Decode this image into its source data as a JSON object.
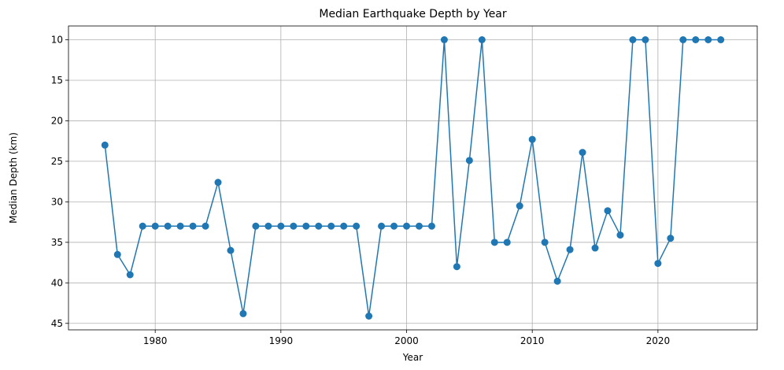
{
  "chart_data": {
    "type": "line",
    "title": "Median Earthquake Depth by Year",
    "xlabel": "Year",
    "ylabel": "Median Depth (km)",
    "xlim": [
      1973.1,
      2027.9
    ],
    "ylim": [
      45.8,
      8.3
    ],
    "y_inverted": true,
    "grid": true,
    "xticks": [
      1980,
      1990,
      2000,
      2010,
      2020
    ],
    "yticks": [
      10,
      15,
      20,
      25,
      30,
      35,
      40,
      45
    ],
    "series": [
      {
        "name": "Median Depth",
        "color": "#1f77b4",
        "marker": "circle",
        "x": [
          1976,
          1977,
          1978,
          1979,
          1980,
          1981,
          1982,
          1983,
          1984,
          1985,
          1986,
          1987,
          1988,
          1989,
          1990,
          1991,
          1992,
          1993,
          1994,
          1995,
          1996,
          1997,
          1998,
          1999,
          2000,
          2001,
          2002,
          2003,
          2004,
          2005,
          2006,
          2007,
          2008,
          2009,
          2010,
          2011,
          2012,
          2013,
          2014,
          2015,
          2016,
          2017,
          2018,
          2019,
          2020,
          2021,
          2022,
          2023,
          2024,
          2025
        ],
        "y": [
          23.0,
          36.5,
          39.0,
          33.0,
          33.0,
          33.0,
          33.0,
          33.0,
          33.0,
          27.6,
          36.0,
          43.8,
          33.0,
          33.0,
          33.0,
          33.0,
          33.0,
          33.0,
          33.0,
          33.0,
          33.0,
          44.1,
          33.0,
          33.0,
          33.0,
          33.0,
          33.0,
          10.0,
          38.0,
          24.9,
          10.0,
          35.0,
          35.0,
          30.5,
          22.3,
          35.0,
          39.8,
          35.9,
          23.9,
          35.7,
          31.1,
          34.1,
          10.0,
          10.0,
          37.6,
          34.5,
          10.0,
          10.0,
          10.0,
          10.0
        ]
      }
    ]
  }
}
